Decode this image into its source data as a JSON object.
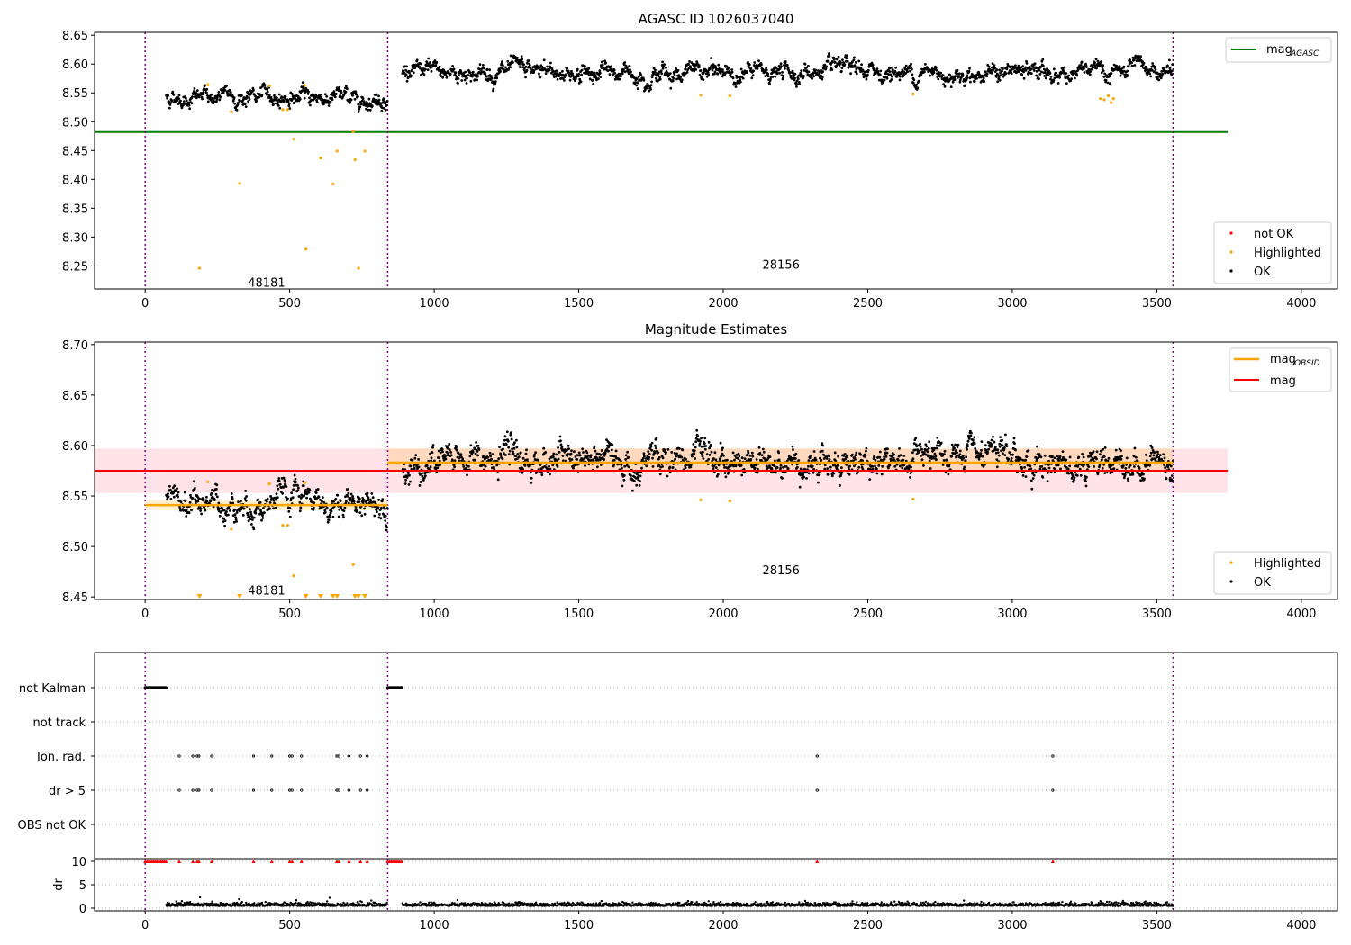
{
  "figure": {
    "title": "AGASC ID 1026037040",
    "colors": {
      "agasc_line": "#008000",
      "obsid_line": "#ffa500",
      "mag_line": "#ff0000",
      "band": "#ffc0cb",
      "highlighted": "#ffa500",
      "not_ok": "#ff0000",
      "ok": "#000000",
      "obs_boundary": "#800080"
    }
  },
  "chart_data": [
    {
      "type": "scatter",
      "title": "",
      "xlabel": "",
      "ylabel": "",
      "xlim": [
        -175,
        4125
      ],
      "ylim": [
        8.21,
        8.655
      ],
      "xticks": [
        "0",
        "500",
        "1000",
        "1500",
        "2000",
        "2500",
        "3000",
        "3500",
        "4000"
      ],
      "yticks": [
        "8.25",
        "8.30",
        "8.35",
        "8.40",
        "8.45",
        "8.50",
        "8.55",
        "8.60",
        "8.65"
      ],
      "obs_boundaries": [
        0,
        839,
        3556
      ],
      "obs_labels": [
        {
          "text": "48181",
          "x": 420,
          "y": 8.222
        },
        {
          "text": "28156",
          "x": 2200,
          "y": 8.253
        }
      ],
      "lines": [
        {
          "name": "mag_AGASC",
          "y": 8.482,
          "x_range": [
            -175,
            3745
          ]
        }
      ],
      "highlighted_points": [
        [
          217,
          8.564
        ],
        [
          298,
          8.517
        ],
        [
          327,
          8.393
        ],
        [
          430,
          8.562
        ],
        [
          476,
          8.521
        ],
        [
          493,
          8.521
        ],
        [
          514,
          8.47
        ],
        [
          552,
          8.563
        ],
        [
          556,
          8.279
        ],
        [
          607,
          8.437
        ],
        [
          650,
          8.392
        ],
        [
          664,
          8.449
        ],
        [
          720,
          8.483
        ],
        [
          726,
          8.434
        ],
        [
          738,
          8.246
        ],
        [
          760,
          8.449
        ],
        [
          188,
          8.246
        ],
        [
          1922,
          8.546
        ],
        [
          2023,
          8.545
        ],
        [
          2657,
          8.548
        ],
        [
          3305,
          8.54
        ],
        [
          3318,
          8.538
        ],
        [
          3332,
          8.545
        ],
        [
          3342,
          8.533
        ],
        [
          3350,
          8.54
        ]
      ],
      "not_ok_points": [],
      "legend_upper": [
        {
          "label": "mag",
          "subscript": "AGASC"
        }
      ],
      "legend_lower": [
        "not OK",
        "Highlighted",
        "OK"
      ],
      "series_segments": [
        {
          "x_range": [
            73,
            839
          ],
          "mean": 8.543,
          "noise": 0.006
        },
        {
          "x_range": [
            890,
            3556
          ],
          "mean": 8.585,
          "noise": 0.007
        }
      ]
    },
    {
      "type": "scatter",
      "title": "Magnitude Estimates",
      "xlabel": "",
      "ylabel": "",
      "xlim": [
        -175,
        4125
      ],
      "ylim": [
        8.4475,
        8.7025
      ],
      "xticks": [
        "0",
        "500",
        "1000",
        "1500",
        "2000",
        "2500",
        "3000",
        "3500",
        "4000"
      ],
      "yticks": [
        "8.45",
        "8.50",
        "8.55",
        "8.60",
        "8.65",
        "8.70"
      ],
      "obs_boundaries": [
        0,
        839,
        3556
      ],
      "obs_labels": [
        {
          "text": "48181",
          "x": 420,
          "y": 8.457
        },
        {
          "text": "28156",
          "x": 2200,
          "y": 8.477
        }
      ],
      "mag_line": {
        "name": "mag",
        "y": 8.575,
        "band": [
          8.553,
          8.597
        ],
        "x_range": [
          -175,
          3745
        ]
      },
      "obsid_lines": [
        {
          "name": "mag_OBSID",
          "x_range": [
            0,
            839
          ],
          "y": 8.541,
          "band": [
            8.536,
            8.546
          ]
        },
        {
          "name": "mag_OBSID",
          "x_range": [
            839,
            3556
          ],
          "y": 8.583,
          "band": [
            8.575,
            8.597
          ]
        }
      ],
      "highlighted_points": [
        [
          217,
          8.564
        ],
        [
          298,
          8.517
        ],
        [
          430,
          8.562
        ],
        [
          476,
          8.521
        ],
        [
          493,
          8.521
        ],
        [
          514,
          8.471
        ],
        [
          552,
          8.563
        ],
        [
          720,
          8.482
        ],
        [
          1922,
          8.546
        ],
        [
          2023,
          8.545
        ],
        [
          2657,
          8.547
        ]
      ],
      "offscale_markers_x": [
        188,
        327,
        556,
        607,
        650,
        664,
        726,
        738,
        760
      ],
      "legend_upper": [
        {
          "label": "mag",
          "subscript": "OBSID"
        },
        {
          "label": "mag",
          "subscript": ""
        }
      ],
      "legend_lower": [
        "Highlighted",
        "OK"
      ]
    },
    {
      "type": "scatter",
      "title": "",
      "xlabel": "",
      "ylabel": "dr",
      "xlim": [
        -175,
        4125
      ],
      "flag_rows": [
        "not Kalman",
        "not track",
        "Ion. rad.",
        "dr > 5",
        "OBS not OK"
      ],
      "flag_points": {
        "not Kalman": [
          [
            0,
            73
          ],
          [
            839,
            890
          ]
        ],
        "not track": [],
        "Ion. rad.": [
          118,
          165,
          180,
          186,
          230,
          375,
          438,
          500,
          508,
          541,
          663,
          670,
          705,
          745,
          768,
          2325,
          3140
        ],
        "dr > 5": [
          118,
          165,
          180,
          186,
          230,
          375,
          438,
          500,
          508,
          541,
          663,
          670,
          705,
          745,
          768,
          2325,
          3140
        ],
        "OBS not OK": []
      },
      "dr_ylim": [
        0,
        10
      ],
      "dr_yticks": [
        "0",
        "5",
        "10"
      ],
      "dr_capped_x": [
        118,
        165,
        180,
        186,
        230,
        375,
        438,
        500,
        508,
        541,
        663,
        670,
        705,
        745,
        768,
        2325,
        3140
      ],
      "dr_capped_ranges": [
        [
          0,
          73
        ],
        [
          839,
          890
        ]
      ],
      "xticks": [
        "0",
        "500",
        "1000",
        "1500",
        "2000",
        "2500",
        "3000",
        "3500",
        "4000"
      ],
      "obs_boundaries": [
        0,
        839,
        3556
      ]
    }
  ]
}
